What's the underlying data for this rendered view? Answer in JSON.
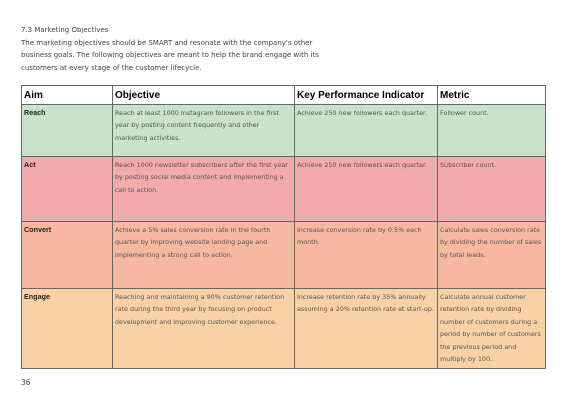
{
  "intro": {
    "heading": "7.3 Marketing Objectives",
    "paragraph": "The marketing objectives should be SMART and resonate with the company's other business goals. The following objectives are meant to help the brand engage with its customers at every stage of the customer lifecycle."
  },
  "table": {
    "headers": {
      "aim": "Aim",
      "objective": "Objective",
      "kpi": "Key Performance Indicator",
      "metric": "Metric"
    },
    "rows": [
      {
        "aim": "Reach",
        "objective": "Reach at least 1000 Instagram followers in the first year by posting content frequently and other marketing activities.",
        "kpi": "Achieve 250 new followers each quarter.",
        "metric": "Follower count."
      },
      {
        "aim": "Act",
        "objective": "Reach 1000 newsletter subscribers after the first year by posting social media content and implementing a call to action.",
        "kpi": "Achieve 250 new followers each quarter.",
        "metric": "Subscriber count."
      },
      {
        "aim": "Convert",
        "objective": "Achieve a 5% sales conversion rate in the fourth quarter by improving website landing page and implementing a strong call to action.",
        "kpi": "Increase conversion rate by 0.5% each month.",
        "metric": "Calculate sales conversion rate by dividing the number of sales by total leads."
      },
      {
        "aim": "Engage",
        "objective": "Reaching and maintaining a 90% customer retention rate during the third year by focusing on product development and improving customer experience.",
        "kpi": "Increase retention rate by 35% annually assuming a 20% retention rate at start-up.",
        "metric": "Calculate annual customer retention rate by dividing number of customers during a period by number of customers the previous period and multiply by 100."
      }
    ]
  },
  "page_number": "36",
  "colors": {
    "reach": "#c8e3c9",
    "act": "#f2aaaa",
    "convert": "#f6b9a0",
    "engage": "#fad1a4"
  }
}
